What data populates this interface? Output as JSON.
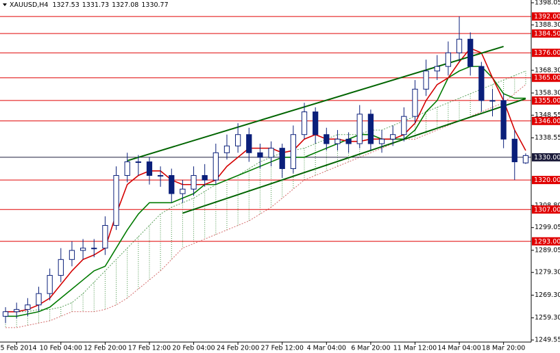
{
  "chart_data": {
    "type": "candlestick",
    "symbol": "XAUUSD,H4",
    "ohlc": [
      1327.53,
      1331.73,
      1327.08,
      1330.77
    ],
    "categories": [
      null,
      "5 Feb 2014",
      null,
      null,
      null,
      "10 Feb 04:00",
      null,
      null,
      null,
      "12 Feb 20:00",
      null,
      null,
      null,
      "17 Feb 12:00",
      null,
      null,
      null,
      "20 Feb 04:00",
      null,
      null,
      null,
      "24 Feb 20:00",
      null,
      null,
      null,
      "27 Feb 12:00",
      null,
      null,
      null,
      "4 Mar 04:00",
      null,
      null,
      null,
      "6 Mar 20:00",
      null,
      null,
      null,
      "11 Mar 12:00",
      null,
      null,
      null,
      "14 Mar 04:00",
      null,
      null,
      null,
      "18 Mar 20:00",
      null,
      null
    ],
    "open": [
      1260,
      1262,
      1263,
      1265,
      1270,
      1278,
      1285,
      1289,
      1290,
      1290,
      1300,
      1322,
      1328,
      1328,
      1322,
      1322,
      1314,
      1316,
      1322,
      1320,
      1332,
      1335,
      1340,
      1332,
      1330,
      1334,
      1325,
      1340,
      1350,
      1340,
      1336,
      1338,
      1336,
      1349,
      1336,
      1338,
      1340,
      1348,
      1360,
      1368,
      1370,
      1376,
      1382,
      1370,
      1355,
      1355,
      1338,
      1327.53
    ],
    "high": [
      1264,
      1266,
      1268,
      1273,
      1281,
      1290,
      1293,
      1294,
      1294,
      1304,
      1326,
      1332,
      1331,
      1330,
      1326,
      1325,
      1320,
      1326,
      1327,
      1336,
      1340,
      1345,
      1343,
      1336,
      1337,
      1336,
      1344,
      1354,
      1352,
      1343,
      1342,
      1341,
      1353,
      1351,
      1342,
      1344,
      1352,
      1364,
      1373,
      1375,
      1381,
      1392,
      1385,
      1372,
      1360,
      1358,
      1342,
      1331.73
    ],
    "low": [
      1257,
      1259,
      1260,
      1262,
      1267,
      1275,
      1282,
      1285,
      1286,
      1287,
      1298,
      1319,
      1322,
      1318,
      1317,
      1310,
      1310,
      1313,
      1317,
      1318,
      1329,
      1332,
      1328,
      1325,
      1326,
      1321,
      1323,
      1338,
      1336,
      1333,
      1333,
      1332,
      1334,
      1333,
      1332,
      1335,
      1337,
      1345,
      1357,
      1364,
      1366,
      1372,
      1366,
      1350,
      1348,
      1334,
      1320,
      1327.08
    ],
    "close": [
      1262,
      1263,
      1265,
      1270,
      1278,
      1285,
      1289,
      1290,
      1290,
      1300,
      1322,
      1328,
      1328,
      1322,
      1322,
      1314,
      1316,
      1322,
      1320,
      1332,
      1335,
      1340,
      1332,
      1330,
      1334,
      1325,
      1340,
      1350,
      1340,
      1336,
      1338,
      1336,
      1349,
      1336,
      1338,
      1340,
      1348,
      1360,
      1368,
      1370,
      1376,
      1382,
      1370,
      1355,
      1355,
      1338,
      1328,
      1330.77
    ],
    "tenkan": [
      1262,
      1262,
      1263,
      1265,
      1268,
      1274,
      1280,
      1285,
      1287,
      1290,
      1305,
      1318,
      1322,
      1324,
      1324,
      1320,
      1318,
      1318,
      1318,
      1320,
      1326,
      1330,
      1334,
      1334,
      1334,
      1332,
      1333,
      1338,
      1340,
      1338,
      1338,
      1337,
      1337,
      1338,
      1338,
      1338,
      1340,
      1345,
      1355,
      1362,
      1365,
      1372,
      1378,
      1376,
      1365,
      1355,
      1342,
      1333
    ],
    "kijun": [
      1260,
      1260,
      1261,
      1262,
      1264,
      1268,
      1272,
      1276,
      1280,
      1282,
      1290,
      1298,
      1305,
      1310,
      1310,
      1310,
      1312,
      1314,
      1318,
      1318,
      1320,
      1322,
      1324,
      1326,
      1328,
      1330,
      1330,
      1330,
      1332,
      1334,
      1336,
      1338,
      1340,
      1340,
      1338,
      1338,
      1338,
      1342,
      1350,
      1355,
      1365,
      1368,
      1370,
      1370,
      1365,
      1358,
      1356,
      1356
    ],
    "span_a": [
      1262,
      1262,
      1262,
      1263,
      1263,
      1264,
      1266,
      1270,
      1275,
      1280,
      1285,
      1290,
      1295,
      1300,
      1305,
      1308,
      1310,
      1312,
      1315,
      1318,
      1320,
      1322,
      1325,
      1328,
      1330,
      1332,
      1333,
      1334,
      1336,
      1338,
      1340,
      1340,
      1340,
      1342,
      1342,
      1344,
      1346,
      1348,
      1350,
      1352,
      1354,
      1356,
      1358,
      1360,
      1362,
      1364,
      1366,
      1368
    ],
    "span_b": [
      1255,
      1255,
      1256,
      1257,
      1258,
      1260,
      1262,
      1262,
      1262,
      1263,
      1265,
      1268,
      1272,
      1276,
      1280,
      1285,
      1290,
      1292,
      1294,
      1296,
      1298,
      1300,
      1302,
      1305,
      1308,
      1312,
      1316,
      1320,
      1322,
      1324,
      1326,
      1328,
      1330,
      1332,
      1334,
      1336,
      1338,
      1338,
      1340,
      1342,
      1344,
      1346,
      1348,
      1350,
      1352,
      1354,
      1358,
      1362
    ],
    "colors": {
      "up": "#ffffff",
      "down": "#0a1f7a",
      "wick": "#0a1f7a",
      "tenkan": "#d40000",
      "kijun": "#007a00",
      "span_a": "#5aa05a",
      "span_b": "#d46a6a",
      "trend": "#006400"
    },
    "trendlines": [
      {
        "from": [
          11,
          1328.5
        ],
        "to": [
          45,
          1378.8
        ]
      },
      {
        "from": [
          16,
          1305.4
        ],
        "to": [
          47,
          1355.8
        ]
      }
    ],
    "levels": [
      {
        "value": 1392,
        "label": "1392.00",
        "color": "#e00000"
      },
      {
        "value": 1384.5,
        "label": "1384.50",
        "color": "#e00000"
      },
      {
        "value": 1376,
        "label": "1376.00",
        "color": "#e00000"
      },
      {
        "value": 1365,
        "label": "1365.00",
        "color": "#e00000"
      },
      {
        "value": 1355,
        "label": "1355.00",
        "color": "#e00000"
      },
      {
        "value": 1346,
        "label": "1346.00",
        "color": "#e00000"
      },
      {
        "value": 1330,
        "label": "1330.00",
        "color": "#1b1b3a"
      },
      {
        "value": 1320,
        "label": "1320.00",
        "color": "#e00000"
      },
      {
        "value": 1307,
        "label": "1307.00",
        "color": "#e00000"
      },
      {
        "value": 1293,
        "label": "1293.00",
        "color": "#e00000"
      }
    ],
    "ylim": [
      1249.55,
      1398.05
    ],
    "yticks": [
      1398.05,
      {
        "value": 1388.3,
        "label": "1388.30"
      },
      {
        "value": 1368.3,
        "label": "1368.30"
      },
      {
        "value": 1358.3,
        "label": "1358.30"
      },
      1348.55,
      1338.55,
      {
        "value": 1308.8,
        "label": "1308.80"
      },
      1299.05,
      1289.05,
      {
        "value": 1279.3,
        "label": "1279.30"
      },
      {
        "value": 1269.3,
        "label": "1269.30"
      },
      {
        "value": 1259.3,
        "label": "1259.30"
      },
      1249.55
    ]
  }
}
